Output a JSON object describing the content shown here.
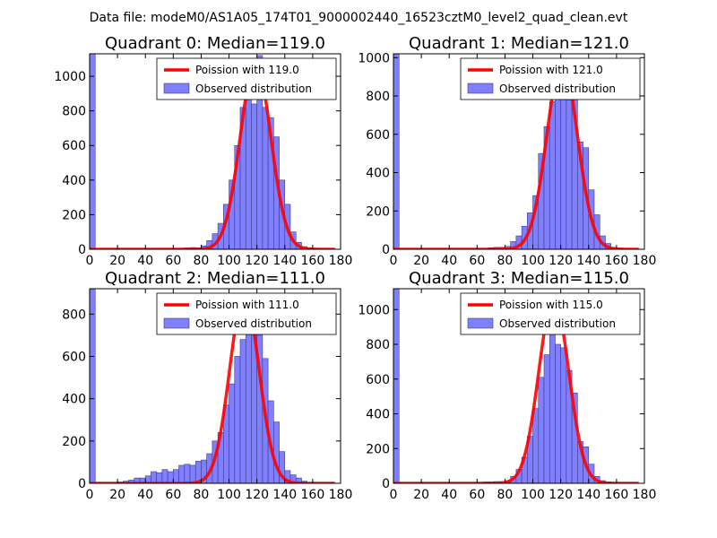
{
  "figure_title": "Data file: modeM0/AS1A05_174T01_9000002440_16523cztM0_level2_quad_clean.evt",
  "colors": {
    "bar_fill": "#8080ff",
    "bar_edge": "#3a3a8c",
    "fit_line": "#ff0000",
    "axes": "#000000"
  },
  "chart_data": [
    {
      "type": "bar",
      "title": "Quadrant 0: Median=119.0",
      "xlim": [
        0,
        180
      ],
      "ylim": [
        0,
        1130
      ],
      "xticks": [
        0,
        20,
        40,
        60,
        80,
        100,
        120,
        140,
        160,
        180
      ],
      "yticks": [
        0,
        200,
        400,
        600,
        800,
        1000
      ],
      "xtick_labels": [
        "0",
        "20",
        "40",
        "60",
        "80",
        "100",
        "120",
        "140",
        "160",
        "180"
      ],
      "ytick_labels": [
        "0",
        "200",
        "400",
        "600",
        "800",
        "1000"
      ],
      "legend": {
        "location": "top-right",
        "line_label": "Poission with 119.0",
        "bar_label": "Observed distribution"
      },
      "bin_width": 4,
      "bins": [
        [
          0,
          1130
        ],
        [
          68,
          8
        ],
        [
          72,
          10
        ],
        [
          76,
          8
        ],
        [
          80,
          20
        ],
        [
          84,
          50
        ],
        [
          88,
          90
        ],
        [
          92,
          150
        ],
        [
          96,
          260
        ],
        [
          100,
          400
        ],
        [
          104,
          600
        ],
        [
          108,
          820
        ],
        [
          112,
          880
        ],
        [
          116,
          840
        ],
        [
          120,
          1120
        ],
        [
          124,
          820
        ],
        [
          128,
          760
        ],
        [
          132,
          650
        ],
        [
          136,
          400
        ],
        [
          140,
          260
        ],
        [
          144,
          100
        ],
        [
          148,
          40
        ],
        [
          152,
          15
        ],
        [
          156,
          8
        ],
        [
          160,
          5
        ]
      ],
      "fit": {
        "mean": 119.0,
        "peak": 1080
      }
    },
    {
      "type": "bar",
      "title": "Quadrant 1: Median=121.0",
      "xlim": [
        0,
        180
      ],
      "ylim": [
        0,
        1020
      ],
      "xticks": [
        0,
        20,
        40,
        60,
        80,
        100,
        120,
        140,
        160,
        180
      ],
      "yticks": [
        0,
        200,
        400,
        600,
        800,
        1000
      ],
      "xtick_labels": [
        "0",
        "20",
        "40",
        "60",
        "80",
        "100",
        "120",
        "140",
        "160",
        "180"
      ],
      "ytick_labels": [
        "0",
        "200",
        "400",
        "600",
        "800",
        "1000"
      ],
      "legend": {
        "location": "top-right",
        "line_label": "Poission with 121.0",
        "bar_label": "Observed distribution"
      },
      "bin_width": 4,
      "bins": [
        [
          0,
          1020
        ],
        [
          68,
          8
        ],
        [
          72,
          10
        ],
        [
          76,
          10
        ],
        [
          80,
          15
        ],
        [
          84,
          40
        ],
        [
          88,
          70
        ],
        [
          92,
          120
        ],
        [
          96,
          190
        ],
        [
          100,
          280
        ],
        [
          104,
          500
        ],
        [
          108,
          640
        ],
        [
          112,
          770
        ],
        [
          116,
          880
        ],
        [
          120,
          970
        ],
        [
          124,
          780
        ],
        [
          128,
          880
        ],
        [
          132,
          560
        ],
        [
          136,
          530
        ],
        [
          140,
          310
        ],
        [
          144,
          180
        ],
        [
          148,
          70
        ],
        [
          152,
          30
        ],
        [
          156,
          10
        ],
        [
          160,
          5
        ]
      ],
      "fit": {
        "mean": 121.0,
        "peak": 980
      }
    },
    {
      "type": "bar",
      "title": "Quadrant 2: Median=111.0",
      "xlim": [
        0,
        180
      ],
      "ylim": [
        0,
        920
      ],
      "xticks": [
        0,
        20,
        40,
        60,
        80,
        100,
        120,
        140,
        160,
        180
      ],
      "yticks": [
        0,
        200,
        400,
        600,
        800
      ],
      "xtick_labels": [
        "0",
        "20",
        "40",
        "60",
        "80",
        "100",
        "120",
        "140",
        "160",
        "180"
      ],
      "ytick_labels": [
        "0",
        "200",
        "400",
        "600",
        "800"
      ],
      "legend": {
        "location": "top-right",
        "line_label": "Poission with 111.0",
        "bar_label": "Observed distribution"
      },
      "bin_width": 4,
      "bins": [
        [
          0,
          920
        ],
        [
          20,
          6
        ],
        [
          24,
          10
        ],
        [
          28,
          15
        ],
        [
          32,
          25
        ],
        [
          36,
          25
        ],
        [
          40,
          35
        ],
        [
          44,
          55
        ],
        [
          48,
          50
        ],
        [
          52,
          65
        ],
        [
          56,
          55
        ],
        [
          60,
          65
        ],
        [
          64,
          85
        ],
        [
          68,
          90
        ],
        [
          72,
          85
        ],
        [
          76,
          105
        ],
        [
          80,
          110
        ],
        [
          84,
          140
        ],
        [
          88,
          200
        ],
        [
          92,
          240
        ],
        [
          96,
          370
        ],
        [
          100,
          470
        ],
        [
          104,
          600
        ],
        [
          108,
          680
        ],
        [
          112,
          820
        ],
        [
          116,
          870
        ],
        [
          120,
          700
        ],
        [
          124,
          590
        ],
        [
          128,
          390
        ],
        [
          132,
          290
        ],
        [
          136,
          150
        ],
        [
          140,
          60
        ],
        [
          144,
          40
        ],
        [
          148,
          25
        ],
        [
          152,
          10
        ]
      ],
      "fit": {
        "mean": 111.0,
        "peak": 890
      }
    },
    {
      "type": "bar",
      "title": "Quadrant 3: Median=115.0",
      "xlim": [
        0,
        180
      ],
      "ylim": [
        0,
        1120
      ],
      "xticks": [
        0,
        20,
        40,
        60,
        80,
        100,
        120,
        140,
        160,
        180
      ],
      "yticks": [
        0,
        200,
        400,
        600,
        800,
        1000
      ],
      "xtick_labels": [
        "0",
        "20",
        "40",
        "60",
        "80",
        "100",
        "120",
        "140",
        "160",
        "180"
      ],
      "ytick_labels": [
        "0",
        "200",
        "400",
        "600",
        "800",
        "1000"
      ],
      "legend": {
        "location": "top-right",
        "line_label": "Poission with 115.0",
        "bar_label": "Observed distribution"
      },
      "bin_width": 4,
      "bins": [
        [
          0,
          1120
        ],
        [
          64,
          8
        ],
        [
          68,
          8
        ],
        [
          72,
          10
        ],
        [
          76,
          10
        ],
        [
          80,
          15
        ],
        [
          84,
          40
        ],
        [
          88,
          80
        ],
        [
          92,
          150
        ],
        [
          96,
          270
        ],
        [
          100,
          430
        ],
        [
          104,
          610
        ],
        [
          108,
          740
        ],
        [
          112,
          1040
        ],
        [
          116,
          800
        ],
        [
          120,
          780
        ],
        [
          124,
          650
        ],
        [
          128,
          520
        ],
        [
          132,
          240
        ],
        [
          136,
          210
        ],
        [
          140,
          110
        ],
        [
          144,
          40
        ],
        [
          148,
          15
        ],
        [
          152,
          8
        ]
      ],
      "fit": {
        "mean": 115.0,
        "peak": 1065
      }
    }
  ]
}
